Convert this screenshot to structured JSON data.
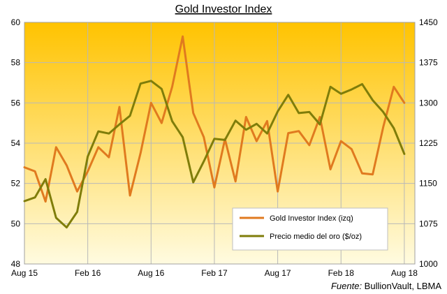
{
  "chart_data": {
    "type": "line",
    "title": "Gold Investor  Index",
    "source_prefix": "Fuente:",
    "source_text": " BullionVault, LBMA",
    "x_tick_labels": [
      "Aug 15",
      "Feb 16",
      "Aug 16",
      "Feb 17",
      "Aug 17",
      "Feb 18",
      "Aug 18"
    ],
    "x_tick_month_index": [
      0,
      6,
      12,
      18,
      24,
      30,
      36
    ],
    "x_range": [
      0,
      37
    ],
    "y_left": {
      "range": [
        48,
        60
      ],
      "ticks": [
        "48",
        "50",
        "52",
        "54",
        "56",
        "58",
        "60"
      ]
    },
    "y_right": {
      "range": [
        1000,
        1450
      ],
      "ticks": [
        "1000",
        "1075",
        "1150",
        "1225",
        "1300",
        "1375",
        "1450"
      ]
    },
    "grid": true,
    "legend_position": "bottom-right",
    "background_gradient": [
      "#ffc300",
      "#fffbe0"
    ],
    "series": [
      {
        "name": "Gold Investor Index (izq)",
        "axis": "left",
        "color": "#e07a1f",
        "x": [
          0,
          1,
          2,
          3,
          4,
          5,
          6,
          7,
          8,
          9,
          10,
          11,
          12,
          13,
          14,
          15,
          16,
          17,
          18,
          19,
          20,
          21,
          22,
          23,
          24,
          25,
          26,
          27,
          28,
          29,
          30,
          31,
          32,
          33,
          34,
          35,
          36,
          37
        ],
        "values": [
          52.8,
          52.6,
          51.1,
          53.8,
          52.9,
          51.6,
          52.6,
          53.8,
          53.3,
          55.8,
          51.4,
          53.5,
          56.0,
          55.0,
          56.8,
          59.3,
          55.5,
          54.3,
          51.8,
          54.2,
          52.1,
          55.3,
          54.1,
          55.1,
          51.6,
          54.5,
          54.6,
          53.9,
          55.3,
          52.7,
          54.1,
          53.7,
          52.5,
          52.45,
          54.8,
          56.8,
          56.0,
          null
        ]
      },
      {
        "name": "Precio medio del oro ($/oz)",
        "axis": "right",
        "color": "#7f7d0a",
        "x": [
          0,
          1,
          2,
          3,
          4,
          5,
          6,
          7,
          8,
          9,
          10,
          11,
          12,
          13,
          14,
          15,
          16,
          17,
          18,
          19,
          20,
          21,
          22,
          23,
          24,
          25,
          26,
          27,
          28,
          29,
          30,
          31,
          32,
          33,
          34,
          35,
          36,
          37
        ],
        "values": [
          1117,
          1124,
          1158,
          1086,
          1068,
          1097,
          1200,
          1247,
          1243,
          1260,
          1276,
          1336,
          1341,
          1326,
          1266,
          1236,
          1152,
          1191,
          1233,
          1231,
          1267,
          1250,
          1261,
          1243,
          1284,
          1315,
          1281,
          1283,
          1260,
          1330,
          1317,
          1325,
          1335,
          1305,
          1283,
          1253,
          1205,
          null
        ]
      }
    ]
  }
}
